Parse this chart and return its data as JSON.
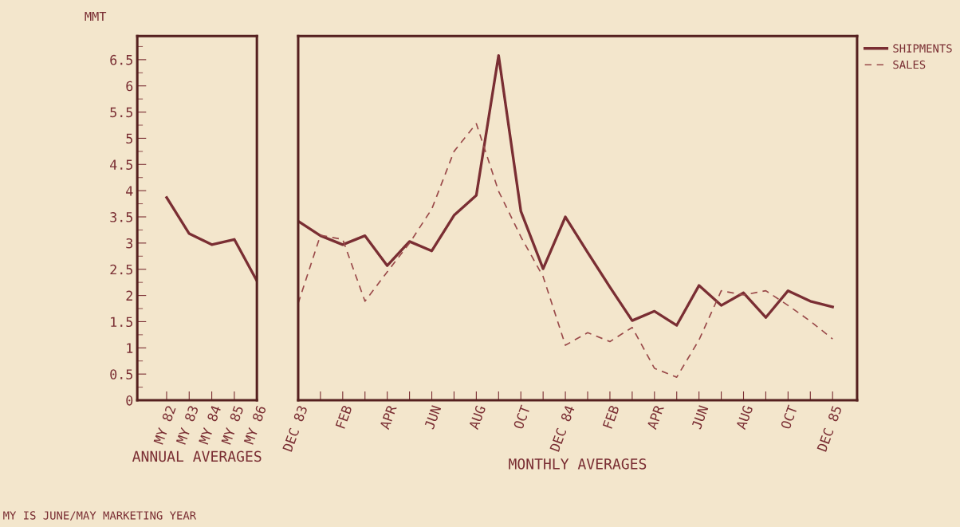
{
  "chart_data": [
    {
      "type": "line",
      "ylabel": "MMT",
      "xlabel": "ANNUAL AVERAGES",
      "categories": [
        "MY 82",
        "MY 83",
        "MY 84",
        "MY 85",
        "MY 86"
      ],
      "series": [
        {
          "color": "#7a2e33",
          "values": [
            3.87,
            3.18,
            2.97,
            3.07,
            2.28
          ],
          "line_style": "solid"
        }
      ],
      "ylim": [
        0,
        6.95
      ],
      "yticks": [
        0,
        0.5,
        1,
        1.5,
        2,
        2.5,
        3,
        3.5,
        4,
        4.5,
        5,
        5.5,
        6,
        6.5
      ],
      "grid": false,
      "legend": false,
      "marker": "none",
      "annotations": [
        "MY IS JUNE/MAY MARKETING YEAR"
      ]
    },
    {
      "type": "line",
      "xlabel": "MONTHLY AVERAGES",
      "categories": [
        "DEC 83",
        null,
        "FEB",
        null,
        "APR",
        null,
        "JUN",
        null,
        "AUG",
        null,
        "OCT",
        null,
        "DEC 84",
        null,
        "FEB",
        null,
        "APR",
        null,
        "JUN",
        null,
        "AUG",
        null,
        "OCT",
        null,
        "DEC 85"
      ],
      "series": [
        {
          "name": "SHIPMENTS",
          "color": "#7a2e33",
          "line_style": "solid",
          "values": [
            3.42,
            3.14,
            2.97,
            3.14,
            2.57,
            3.03,
            2.85,
            3.53,
            3.91,
            6.58,
            3.61,
            2.51,
            3.5,
            2.82,
            2.16,
            1.52,
            1.7,
            1.43,
            2.19,
            1.81,
            2.05,
            1.58,
            2.09,
            1.89,
            1.78
          ]
        },
        {
          "name": "SALES",
          "color": "#9a4a4a",
          "line_style": "dashed",
          "values": [
            1.85,
            3.15,
            3.07,
            1.89,
            2.45,
            3.0,
            3.65,
            4.75,
            5.28,
            3.99,
            3.12,
            2.36,
            1.05,
            1.29,
            1.12,
            1.39,
            0.61,
            0.44,
            1.15,
            2.09,
            2.01,
            2.09,
            1.81,
            1.51,
            1.17
          ]
        }
      ],
      "ylim": [
        0,
        6.95
      ],
      "tick_labels": "x",
      "grid": false,
      "legend": "right",
      "marker": "none"
    }
  ]
}
